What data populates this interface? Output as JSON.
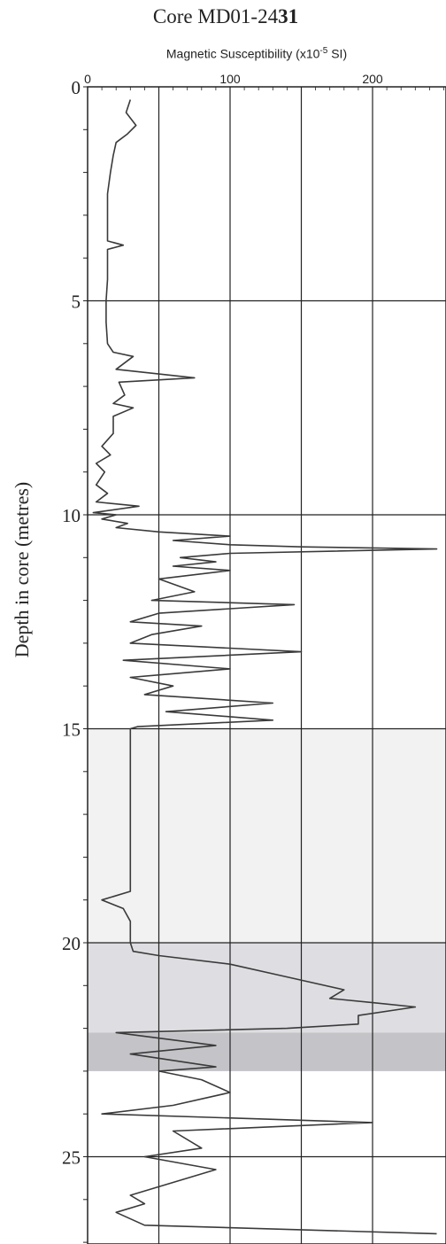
{
  "chart_data": {
    "type": "line",
    "title_main": "Core MD01-24",
    "title_bold": "31",
    "xlabel": "Magnetic Susceptibility (x10",
    "xlabel_sup": "-5",
    "xlabel_unit": " SI)",
    "ylabel": "Depth in core (metres)",
    "xlim": [
      0,
      250
    ],
    "ylim": [
      0,
      27
    ],
    "x_ticks": [
      0,
      100,
      200
    ],
    "y_ticks": [
      0,
      5,
      10,
      15,
      20,
      25
    ],
    "x_gridlines": [
      50,
      100,
      150,
      200
    ],
    "y_gridlines": [
      5,
      10,
      15,
      20,
      25
    ],
    "shaded_bands": [
      {
        "from": 15,
        "to": 20,
        "color": "#f2f2f2"
      },
      {
        "from": 20,
        "to": 22.1,
        "color": "#dedee2"
      },
      {
        "from": 22.1,
        "to": 23.0,
        "color": "#c4c4c8"
      }
    ],
    "series": [
      {
        "points": [
          [
            30,
            0.3
          ],
          [
            27,
            0.6
          ],
          [
            34,
            0.9
          ],
          [
            28,
            1.1
          ],
          [
            20,
            1.3
          ],
          [
            18,
            1.6
          ],
          [
            16,
            2.0
          ],
          [
            14,
            2.5
          ],
          [
            14,
            3.0
          ],
          [
            14,
            3.6
          ],
          [
            25,
            3.7
          ],
          [
            14,
            3.8
          ],
          [
            14,
            4.5
          ],
          [
            13,
            5.0
          ],
          [
            13,
            5.5
          ],
          [
            14,
            6.0
          ],
          [
            18,
            6.2
          ],
          [
            32,
            6.3
          ],
          [
            20,
            6.6
          ],
          [
            75,
            6.8
          ],
          [
            22,
            6.9
          ],
          [
            26,
            7.2
          ],
          [
            18,
            7.4
          ],
          [
            32,
            7.5
          ],
          [
            18,
            7.7
          ],
          [
            18,
            8.1
          ],
          [
            10,
            8.4
          ],
          [
            16,
            8.6
          ],
          [
            6,
            8.8
          ],
          [
            12,
            9.0
          ],
          [
            6,
            9.3
          ],
          [
            14,
            9.5
          ],
          [
            6,
            9.7
          ],
          [
            36,
            9.8
          ],
          [
            4,
            9.95
          ],
          [
            20,
            10.0
          ],
          [
            10,
            10.1
          ],
          [
            28,
            10.2
          ],
          [
            20,
            10.3
          ],
          [
            50,
            10.4
          ],
          [
            100,
            10.5
          ],
          [
            60,
            10.6
          ],
          [
            100,
            10.7
          ],
          [
            150,
            10.75
          ],
          [
            245,
            10.8
          ],
          [
            100,
            10.9
          ],
          [
            65,
            11.0
          ],
          [
            90,
            11.1
          ],
          [
            60,
            11.2
          ],
          [
            100,
            11.3
          ],
          [
            50,
            11.5
          ],
          [
            75,
            11.8
          ],
          [
            45,
            12.0
          ],
          [
            145,
            12.1
          ],
          [
            50,
            12.3
          ],
          [
            30,
            12.5
          ],
          [
            80,
            12.6
          ],
          [
            45,
            12.8
          ],
          [
            30,
            13.0
          ],
          [
            150,
            13.2
          ],
          [
            25,
            13.4
          ],
          [
            100,
            13.6
          ],
          [
            30,
            13.8
          ],
          [
            60,
            14.0
          ],
          [
            40,
            14.2
          ],
          [
            130,
            14.4
          ],
          [
            55,
            14.6
          ],
          [
            130,
            14.8
          ],
          [
            35,
            14.95
          ],
          [
            30,
            15.0
          ],
          [
            30,
            15.2
          ],
          [
            30,
            16.0
          ],
          [
            30,
            17.0
          ],
          [
            30,
            18.0
          ],
          [
            30,
            18.8
          ],
          [
            10,
            19.0
          ],
          [
            25,
            19.2
          ],
          [
            30,
            19.5
          ],
          [
            30,
            19.8
          ],
          [
            30,
            20.0
          ],
          [
            32,
            20.2
          ],
          [
            50,
            20.3
          ],
          [
            100,
            20.5
          ],
          [
            140,
            20.8
          ],
          [
            180,
            21.1
          ],
          [
            170,
            21.3
          ],
          [
            200,
            21.4
          ],
          [
            230,
            21.5
          ],
          [
            190,
            21.7
          ],
          [
            190,
            21.9
          ],
          [
            140,
            22.0
          ],
          [
            20,
            22.1
          ],
          [
            90,
            22.4
          ],
          [
            30,
            22.6
          ],
          [
            90,
            22.9
          ],
          [
            50,
            23.0
          ],
          [
            80,
            23.2
          ],
          [
            100,
            23.5
          ],
          [
            60,
            23.8
          ],
          [
            10,
            24.0
          ],
          [
            200,
            24.2
          ],
          [
            60,
            24.4
          ],
          [
            80,
            24.8
          ],
          [
            40,
            25.0
          ],
          [
            90,
            25.3
          ],
          [
            60,
            25.6
          ],
          [
            30,
            25.9
          ],
          [
            40,
            26.1
          ],
          [
            20,
            26.3
          ],
          [
            40,
            26.6
          ],
          [
            245,
            26.8
          ]
        ]
      }
    ]
  }
}
